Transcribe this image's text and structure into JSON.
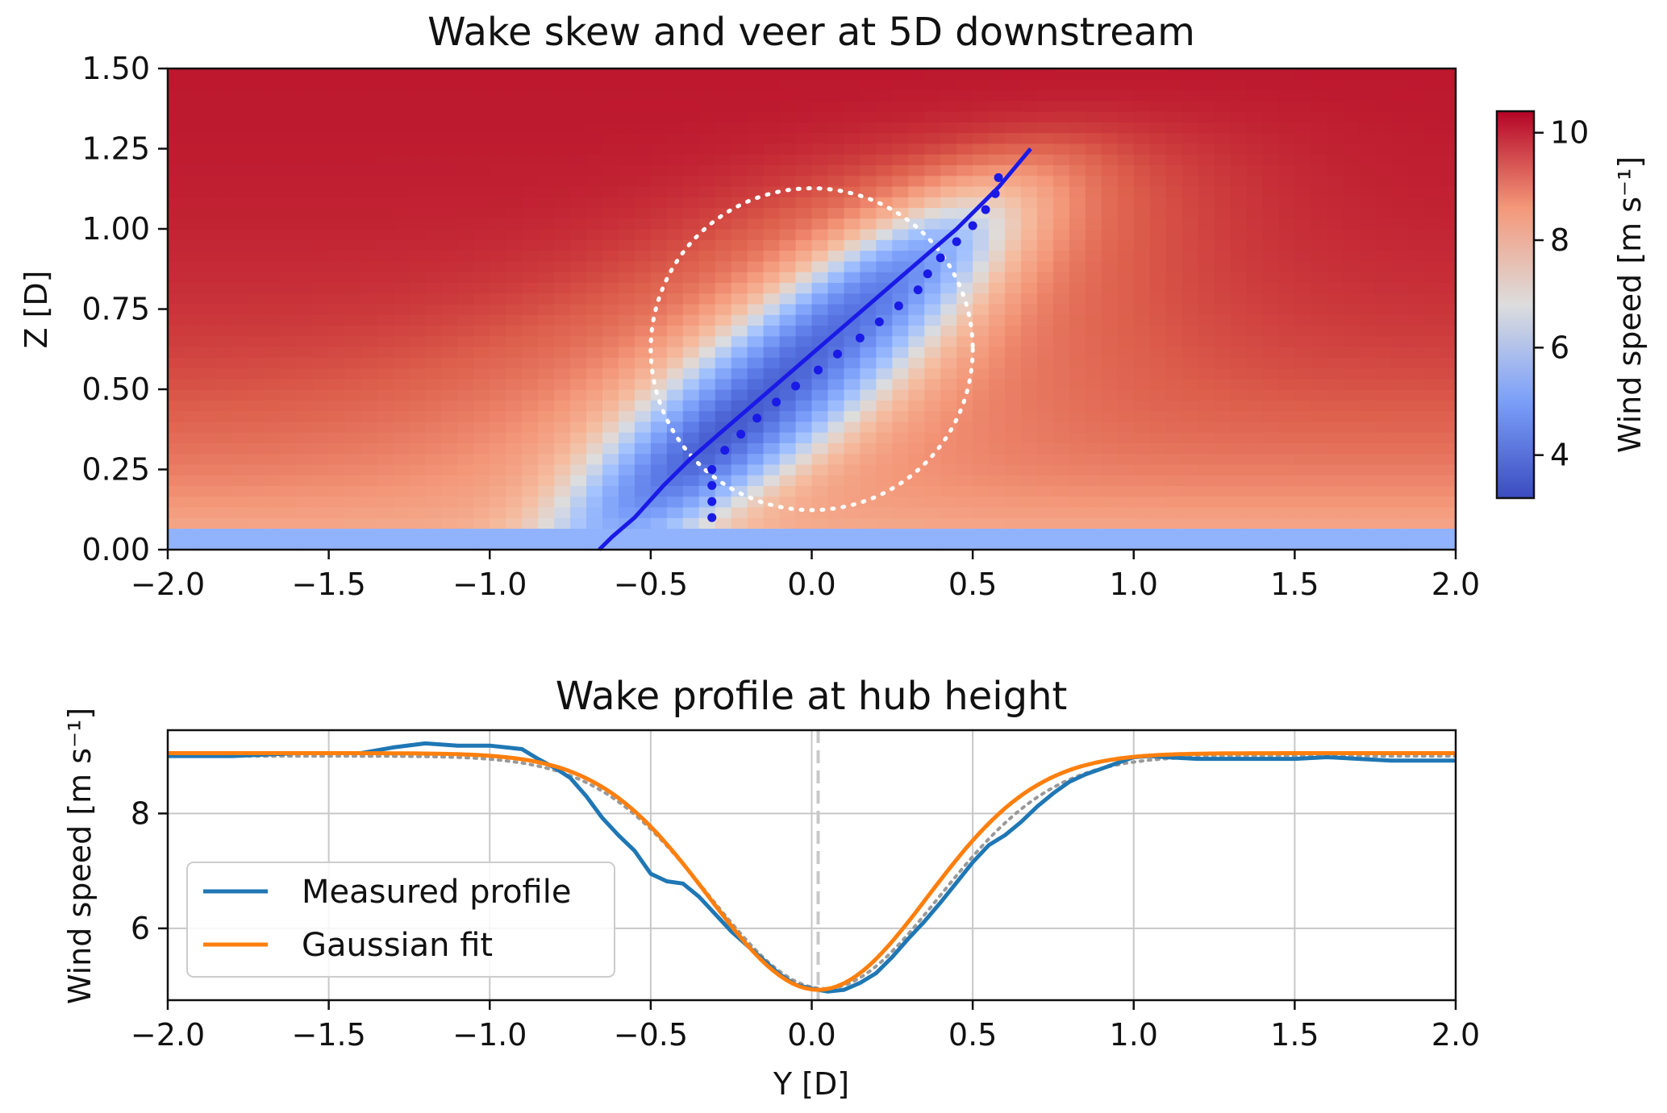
{
  "figure": {
    "panels": 2
  },
  "chart_data": [
    {
      "type": "heatmap",
      "title": "Wake skew and veer at 5D downstream",
      "xlabel": "",
      "ylabel": "Z [D]",
      "xlim": [
        -2.0,
        2.0
      ],
      "ylim": [
        0.0,
        1.5
      ],
      "xticks": [
        "−2.0",
        "−1.5",
        "−1.0",
        "−0.5",
        "0.0",
        "0.5",
        "1.0",
        "1.5",
        "2.0"
      ],
      "xtick_values": [
        -2.0,
        -1.5,
        -1.0,
        -0.5,
        0.0,
        0.5,
        1.0,
        1.5,
        2.0
      ],
      "yticks": [
        "0.00",
        "0.25",
        "0.50",
        "0.75",
        "1.00",
        "1.25",
        "1.50"
      ],
      "ytick_values": [
        0.0,
        0.25,
        0.5,
        0.75,
        1.0,
        1.25,
        1.5
      ],
      "colorbar": {
        "label": "Wind speed [m s⁻¹]",
        "range": [
          3.2,
          10.4
        ],
        "ticks": [
          "4",
          "6",
          "8",
          "10"
        ],
        "tick_values": [
          4,
          6,
          8,
          10
        ],
        "colormap": "coolwarm",
        "colors": {
          "low": "#3b4cc0",
          "mid": "#dddddd",
          "high": "#b40426"
        }
      },
      "field_model": {
        "free_stream": {
          "z0": 10.2,
          "z1": 10.3,
          "z_scale": 0.5
        },
        "near_ground": {
          "speed": 5.5,
          "below_z": 0.06
        },
        "wake_deficit": 4.8,
        "wake_center_line": {
          "y_at_z0": -0.66,
          "y_at_z125": 0.68
        },
        "wake_sigma": 0.18
      },
      "rotor_circle": {
        "center": [
          0.0,
          0.625
        ],
        "radius": 0.5,
        "color": "#ffffff",
        "style": "dotted"
      },
      "wake_center_fit": {
        "color": "#1a1ae6",
        "points": [
          [
            -0.66,
            0.0
          ],
          [
            -0.62,
            0.04
          ],
          [
            -0.55,
            0.1
          ],
          [
            -0.46,
            0.2
          ],
          [
            -0.38,
            0.28
          ],
          [
            -0.3,
            0.35
          ],
          [
            -0.15,
            0.48
          ],
          [
            0.0,
            0.61
          ],
          [
            0.15,
            0.74
          ],
          [
            0.3,
            0.87
          ],
          [
            0.45,
            1.0
          ],
          [
            0.58,
            1.13
          ],
          [
            0.68,
            1.25
          ]
        ]
      },
      "wake_center_measured": {
        "color": "#1a1ae6",
        "points": [
          [
            -0.31,
            0.1
          ],
          [
            -0.31,
            0.15
          ],
          [
            -0.31,
            0.2
          ],
          [
            -0.31,
            0.25
          ],
          [
            -0.27,
            0.31
          ],
          [
            -0.22,
            0.36
          ],
          [
            -0.17,
            0.41
          ],
          [
            -0.11,
            0.46
          ],
          [
            -0.05,
            0.51
          ],
          [
            0.02,
            0.56
          ],
          [
            0.08,
            0.61
          ],
          [
            0.15,
            0.66
          ],
          [
            0.21,
            0.71
          ],
          [
            0.27,
            0.76
          ],
          [
            0.33,
            0.81
          ],
          [
            0.36,
            0.86
          ],
          [
            0.4,
            0.91
          ],
          [
            0.45,
            0.96
          ],
          [
            0.5,
            1.01
          ],
          [
            0.54,
            1.06
          ],
          [
            0.57,
            1.11
          ],
          [
            0.58,
            1.16
          ]
        ]
      }
    },
    {
      "type": "line",
      "title": "Wake profile at hub height",
      "xlabel": "Y [D]",
      "ylabel": "Wind speed [m s⁻¹]",
      "xlim": [
        -2.0,
        2.0
      ],
      "ylim": [
        4.75,
        9.45
      ],
      "grid": true,
      "legend_position": "lower-left",
      "xticks": [
        "−2.0",
        "−1.5",
        "−1.0",
        "−0.5",
        "0.0",
        "0.5",
        "1.0",
        "1.5",
        "2.0"
      ],
      "xtick_values": [
        -2.0,
        -1.5,
        -1.0,
        -0.5,
        0.0,
        0.5,
        1.0,
        1.5,
        2.0
      ],
      "yticks": [
        "6",
        "8"
      ],
      "ytick_values": [
        6,
        8
      ],
      "vertical_marker": {
        "x": 0.02,
        "color": "#c8c8c8",
        "style": "dashed"
      },
      "series": [
        {
          "name": "Measured profile",
          "color": "#1f77b4",
          "x": [
            -2.0,
            -1.8,
            -1.6,
            -1.4,
            -1.3,
            -1.2,
            -1.1,
            -1.0,
            -0.9,
            -0.85,
            -0.8,
            -0.75,
            -0.7,
            -0.65,
            -0.6,
            -0.55,
            -0.5,
            -0.45,
            -0.4,
            -0.35,
            -0.3,
            -0.25,
            -0.2,
            -0.15,
            -0.1,
            -0.05,
            0.0,
            0.05,
            0.1,
            0.15,
            0.2,
            0.25,
            0.3,
            0.35,
            0.4,
            0.45,
            0.5,
            0.55,
            0.6,
            0.65,
            0.7,
            0.75,
            0.8,
            0.85,
            0.9,
            0.95,
            1.0,
            1.05,
            1.1,
            1.2,
            1.3,
            1.4,
            1.5,
            1.6,
            1.7,
            1.8,
            2.0
          ],
          "values": [
            9.0,
            9.0,
            9.05,
            9.05,
            9.15,
            9.22,
            9.18,
            9.18,
            9.12,
            8.95,
            8.8,
            8.62,
            8.3,
            7.92,
            7.62,
            7.35,
            6.95,
            6.82,
            6.78,
            6.55,
            6.25,
            5.95,
            5.7,
            5.45,
            5.2,
            5.02,
            4.95,
            4.9,
            4.93,
            5.05,
            5.22,
            5.5,
            5.82,
            6.12,
            6.45,
            6.8,
            7.15,
            7.45,
            7.62,
            7.85,
            8.12,
            8.35,
            8.55,
            8.68,
            8.78,
            8.88,
            8.98,
            9.0,
            8.98,
            8.95,
            8.95,
            8.95,
            8.95,
            8.98,
            8.95,
            8.92,
            8.92
          ]
        },
        {
          "name": "Gaussian fit",
          "color": "#ff7f0e",
          "model": {
            "baseline": 9.05,
            "deficit": 4.12,
            "center": 0.02,
            "sigma": 0.34
          }
        },
        {
          "name": "",
          "color": "#999999",
          "style": "dotted",
          "model": {
            "baseline": 9.0,
            "deficit": 4.05,
            "center": 0.04,
            "sigma": 0.355
          }
        }
      ]
    }
  ]
}
